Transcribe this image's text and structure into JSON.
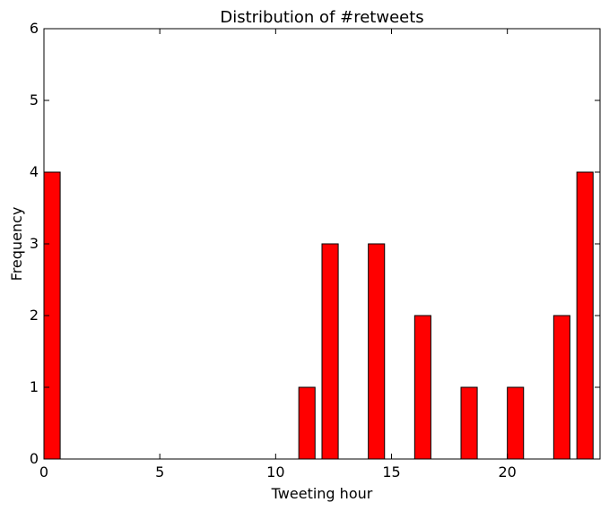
{
  "chart_data": {
    "type": "bar",
    "title": "Distribution of #retweets",
    "xlabel": "Tweeting hour",
    "ylabel": "Frequency",
    "xlim": [
      0,
      24
    ],
    "ylim": [
      0,
      6
    ],
    "xticks": [
      0,
      5,
      10,
      15,
      20
    ],
    "yticks": [
      0,
      1,
      2,
      3,
      4,
      5,
      6
    ],
    "bar_width": 0.7,
    "bar_color": "#ff0000",
    "edge_color": "#000000",
    "grid": false,
    "categories": [
      0,
      1,
      2,
      3,
      4,
      5,
      6,
      7,
      8,
      9,
      10,
      11,
      12,
      13,
      14,
      15,
      16,
      17,
      18,
      19,
      20,
      21,
      22,
      23
    ],
    "values": [
      4,
      0,
      0,
      0,
      0,
      0,
      0,
      0,
      0,
      0,
      0,
      1,
      3,
      0,
      3,
      0,
      2,
      0,
      1,
      0,
      1,
      0,
      2,
      4
    ]
  }
}
